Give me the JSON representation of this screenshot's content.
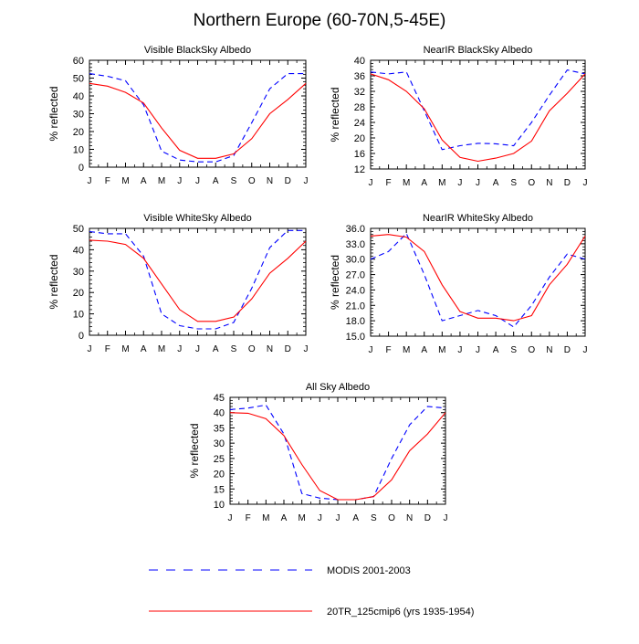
{
  "figure": {
    "title": "Northern Europe (60-70N,5-45E)"
  },
  "colors": {
    "modis": "#0000ff",
    "model": "#ff0000",
    "axis": "#000000"
  },
  "legend": {
    "modis_label": "MODIS 2001-2003",
    "model_label": "20TR_125cmip6 (yrs 1935-1954)"
  },
  "chart_data": [
    {
      "type": "line",
      "title": "Visible BlackSky Albedo",
      "ylabel": "% reflected",
      "categories": [
        "J",
        "F",
        "M",
        "A",
        "M",
        "J",
        "J",
        "A",
        "S",
        "O",
        "N",
        "D",
        "J"
      ],
      "ylim": [
        0,
        60
      ],
      "yticks": [
        "0",
        "10",
        "20",
        "30",
        "40",
        "50",
        "60"
      ],
      "series": [
        {
          "name": "MODIS 2001-2003",
          "values": [
            52.5,
            51,
            48.5,
            35,
            9,
            4,
            3,
            3,
            6.5,
            25,
            44,
            52.5,
            52.5
          ]
        },
        {
          "name": "20TR_125cmip6 (yrs 1935-1954)",
          "values": [
            47,
            45.5,
            42,
            36,
            22,
            9.5,
            5,
            5,
            7.5,
            16,
            30,
            38,
            47
          ]
        }
      ]
    },
    {
      "type": "line",
      "title": "NearIR BlackSky Albedo",
      "ylabel": "% reflected",
      "categories": [
        "J",
        "F",
        "M",
        "A",
        "M",
        "J",
        "J",
        "A",
        "S",
        "O",
        "N",
        "D",
        "J"
      ],
      "ylim": [
        12,
        40
      ],
      "yticks": [
        "12",
        "16",
        "20",
        "24",
        "28",
        "32",
        "36",
        "40"
      ],
      "series": [
        {
          "name": "MODIS 2001-2003",
          "values": [
            37,
            36.5,
            37,
            27,
            17,
            18,
            18.6,
            18.5,
            18,
            24,
            31,
            37.5,
            36.5
          ]
        },
        {
          "name": "20TR_125cmip6 (yrs 1935-1954)",
          "values": [
            36.5,
            35,
            32,
            27.5,
            19.5,
            15,
            14,
            14.8,
            16,
            19.2,
            27,
            31.5,
            36.5
          ]
        }
      ]
    },
    {
      "type": "line",
      "title": "Visible WhiteSky Albedo",
      "ylabel": "% reflected",
      "categories": [
        "J",
        "F",
        "M",
        "A",
        "M",
        "J",
        "J",
        "A",
        "S",
        "O",
        "N",
        "D",
        "J"
      ],
      "ylim": [
        0,
        50
      ],
      "yticks": [
        "0",
        "10",
        "20",
        "30",
        "40",
        "50"
      ],
      "series": [
        {
          "name": "MODIS 2001-2003",
          "values": [
            48.5,
            47.5,
            47.5,
            37,
            10,
            4.5,
            3,
            3,
            6,
            22,
            41,
            49,
            49
          ]
        },
        {
          "name": "20TR_125cmip6 (yrs 1935-1954)",
          "values": [
            44.5,
            44,
            42.5,
            36,
            24,
            12,
            6.5,
            6.5,
            8.5,
            17,
            29,
            36,
            44
          ]
        }
      ]
    },
    {
      "type": "line",
      "title": "NearIR WhiteSky Albedo",
      "ylabel": "% reflected",
      "categories": [
        "J",
        "F",
        "M",
        "A",
        "M",
        "J",
        "J",
        "A",
        "S",
        "O",
        "N",
        "D",
        "J"
      ],
      "ylim": [
        15,
        36
      ],
      "yticks": [
        "15.0",
        "18.0",
        "21.0",
        "24.0",
        "27.0",
        "30.0",
        "33.0",
        "36.0"
      ],
      "series": [
        {
          "name": "MODIS 2001-2003",
          "values": [
            30,
            31.5,
            35,
            27,
            18,
            19,
            20,
            19,
            16.8,
            21,
            26.5,
            31,
            30
          ]
        },
        {
          "name": "20TR_125cmip6 (yrs 1935-1954)",
          "values": [
            34.5,
            34.8,
            34.3,
            31.5,
            25,
            19.8,
            18.5,
            18.5,
            18,
            19,
            25,
            29,
            34.5
          ]
        }
      ]
    },
    {
      "type": "line",
      "title": "All Sky Albedo",
      "ylabel": "% reflected",
      "categories": [
        "J",
        "F",
        "M",
        "A",
        "M",
        "J",
        "J",
        "A",
        "S",
        "O",
        "N",
        "D",
        "J"
      ],
      "ylim": [
        10,
        45
      ],
      "yticks": [
        "10",
        "15",
        "20",
        "25",
        "30",
        "35",
        "40",
        "45"
      ],
      "series": [
        {
          "name": "MODIS 2001-2003",
          "values": [
            41,
            41.5,
            42.5,
            33,
            13.5,
            12,
            11.5,
            11.5,
            12.5,
            25,
            36,
            42,
            41.5
          ]
        },
        {
          "name": "20TR_125cmip6 (yrs 1935-1954)",
          "values": [
            40,
            39.8,
            38,
            32.5,
            23,
            14.5,
            11.5,
            11.5,
            12.5,
            18,
            27.5,
            33,
            40
          ]
        }
      ]
    }
  ]
}
